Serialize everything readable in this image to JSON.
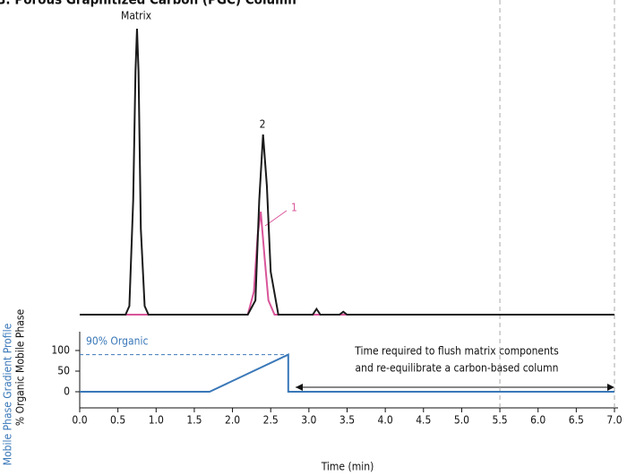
{
  "chart_data": [
    {
      "type": "line",
      "title": "B: Porous Graphitized Carbon (PGC) Column",
      "ylim": [
        0,
        100
      ],
      "series": [
        {
          "name": "Matrix + 2",
          "color": "#1a1a1a",
          "x": [
            0,
            0.6,
            0.65,
            0.7,
            0.73,
            0.75,
            0.77,
            0.8,
            0.85,
            0.9,
            1.5,
            2.2,
            2.3,
            2.35,
            2.4,
            2.45,
            2.5,
            2.6,
            3.05,
            3.1,
            3.15,
            3.4,
            3.45,
            3.5,
            7.0
          ],
          "values": [
            0,
            0,
            3,
            40,
            85,
            100,
            85,
            30,
            3,
            0,
            0,
            0,
            5,
            40,
            63,
            45,
            15,
            0,
            0,
            2,
            0,
            0,
            1,
            0,
            0
          ]
        },
        {
          "name": "1",
          "color": "#d9559a",
          "x": [
            0,
            1.5,
            2.2,
            2.28,
            2.33,
            2.37,
            2.42,
            2.47,
            2.55,
            7.0
          ],
          "values": [
            0,
            0,
            0,
            8,
            28,
            36,
            20,
            5,
            0,
            0
          ]
        }
      ],
      "annotations": [
        "Matrix",
        "2",
        "1"
      ]
    },
    {
      "type": "line",
      "xlabel": "Time (min)",
      "ylabel": "% Organic Mobile Phase",
      "panel_label": "Mobile Phase Gradient Profile",
      "xlim": [
        0,
        7.0
      ],
      "ylim": [
        0,
        100
      ],
      "yticks": [
        0,
        50,
        100
      ],
      "xticks": [
        {
          "value": 0,
          "label": "0.0"
        },
        {
          "value": 0.5,
          "label": "0.5"
        },
        {
          "value": 1,
          "label": "1.0"
        },
        {
          "value": 1.5,
          "label": "1.5"
        },
        {
          "value": 2,
          "label": "2.0"
        },
        {
          "value": 2.5,
          "label": "2.5"
        },
        {
          "value": 3,
          "label": "3.0"
        },
        {
          "value": 3.5,
          "label": "3.5"
        },
        {
          "value": 4,
          "label": "4.0"
        },
        {
          "value": 4.5,
          "label": "4.5"
        },
        {
          "value": 5,
          "label": "5.0"
        },
        {
          "value": 5.5,
          "label": "5.5"
        },
        {
          "value": 6,
          "label": "6.0"
        },
        {
          "value": 6.5,
          "label": "6.5"
        },
        {
          "value": 7,
          "label": "7.0"
        }
      ],
      "series": [
        {
          "name": "90% Organic",
          "color": "#3a78b8",
          "x": [
            0,
            1.7,
            2.73,
            2.73,
            7.0
          ],
          "values": [
            0,
            0,
            90,
            0,
            0
          ]
        }
      ],
      "reference_lines_x": [
        5.5,
        7.0
      ],
      "annotation": [
        "Time required to flush matrix components",
        "and re-equilibrate a carbon-based column"
      ]
    }
  ]
}
